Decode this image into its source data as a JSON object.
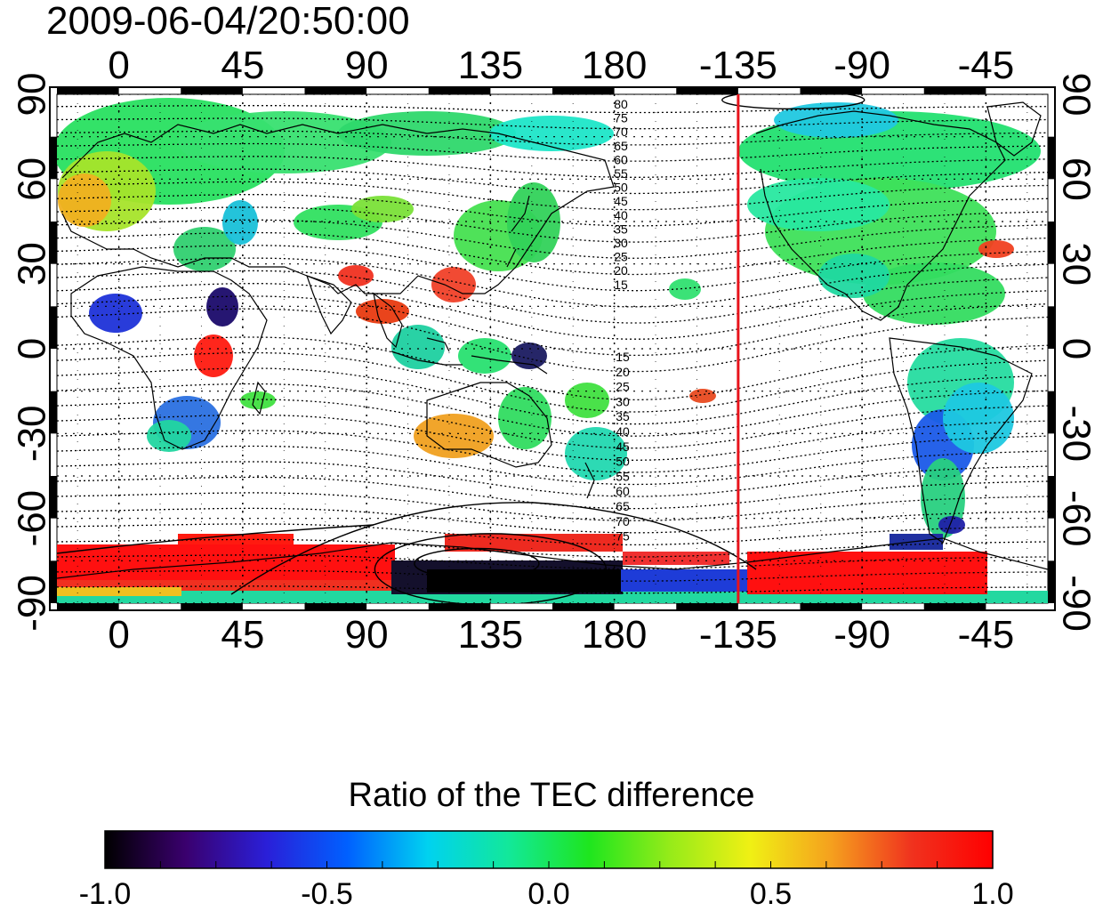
{
  "title": "2009-06-04/20:50:00",
  "map": {
    "top_axis_ticks": [
      "0",
      "45",
      "90",
      "135",
      "180",
      "-135",
      "-90",
      "-45"
    ],
    "bottom_axis_ticks": [
      "0",
      "45",
      "90",
      "135",
      "180",
      "-135",
      "-90",
      "-45"
    ],
    "left_axis_ticks": [
      "90",
      "60",
      "30",
      "0",
      "-30",
      "-60",
      "-90"
    ],
    "right_axis_ticks": [
      "90",
      "60",
      "30",
      "0",
      "-30",
      "-60",
      "-90"
    ],
    "contour_labels_north": [
      "80",
      "75",
      "70",
      "65",
      "60",
      "55",
      "50",
      "45",
      "40",
      "35",
      "30",
      "25",
      "20",
      "15"
    ],
    "contour_labels_south": [
      "15",
      "20",
      "25",
      "30",
      "35",
      "40",
      "45",
      "50",
      "55",
      "60",
      "65",
      "70",
      "75"
    ],
    "marker_line_longitude": -135,
    "marker_line_color": "#e8141c"
  },
  "colorbar": {
    "title": "Ratio of the TEC difference",
    "tick_labels": [
      "-1.0",
      "-0.5",
      "0.0",
      "0.5",
      "1.0"
    ],
    "colormap": [
      "#000000",
      "#3a006e",
      "#2a1fd8",
      "#0060ff",
      "#00d2f0",
      "#12e89a",
      "#1ee61e",
      "#96eb19",
      "#f0f014",
      "#f5a01e",
      "#f0321e",
      "#ff0000"
    ]
  }
}
